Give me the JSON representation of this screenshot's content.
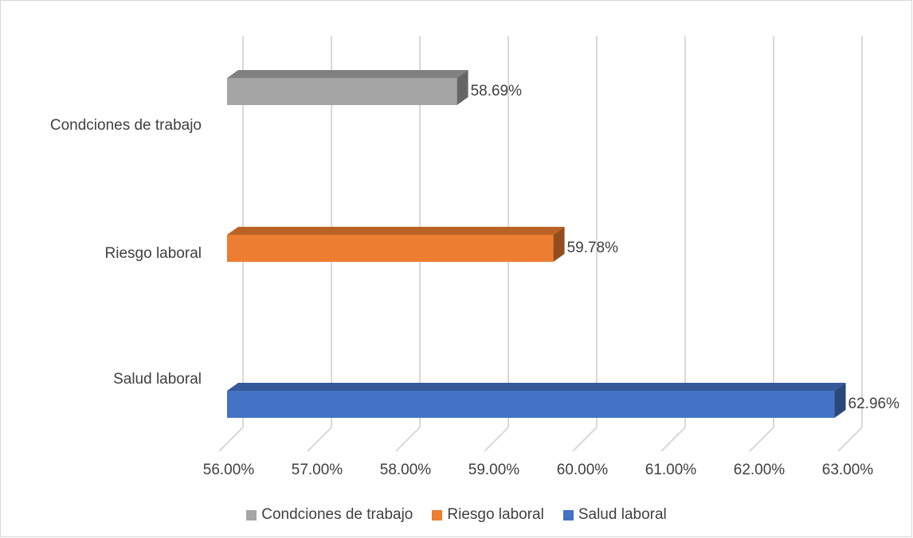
{
  "chart_data": {
    "type": "bar",
    "orientation": "horizontal",
    "three_d": true,
    "title": "",
    "xlabel": "",
    "ylabel": "",
    "xlim": [
      0.56,
      0.63
    ],
    "ticks": [
      {
        "value": 0.56,
        "label": "56.00%"
      },
      {
        "value": 0.57,
        "label": "57.00%"
      },
      {
        "value": 0.58,
        "label": "58.00%"
      },
      {
        "value": 0.59,
        "label": "59.00%"
      },
      {
        "value": 0.6,
        "label": "60.00%"
      },
      {
        "value": 0.61,
        "label": "61.00%"
      },
      {
        "value": 0.62,
        "label": "62.00%"
      },
      {
        "value": 0.63,
        "label": "63.00%"
      }
    ],
    "grid": true,
    "legend_position": "bottom",
    "categories": [
      "Condciones de trabajo",
      "Riesgo laboral",
      "Salud laboral"
    ],
    "series": [
      {
        "name": "Condciones de trabajo",
        "value": 0.5869,
        "label": "58.69%",
        "color": "#a5a5a5"
      },
      {
        "name": "Riesgo laboral",
        "value": 0.5978,
        "label": "59.78%",
        "color": "#ed7d31"
      },
      {
        "name": "Salud laboral",
        "value": 0.6296,
        "label": "62.96%",
        "color": "#4472c4"
      }
    ]
  }
}
